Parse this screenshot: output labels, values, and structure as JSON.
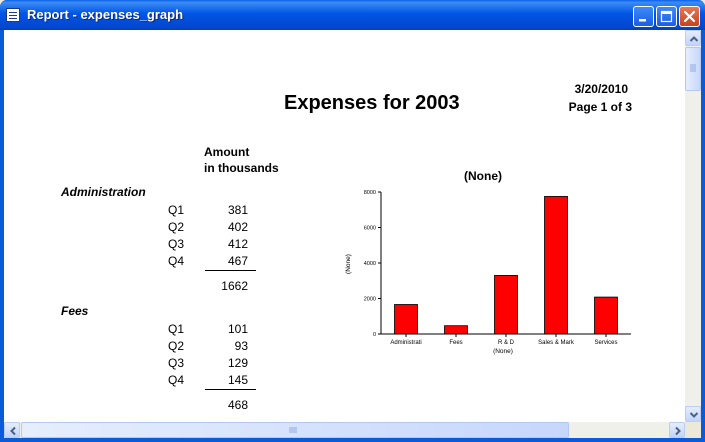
{
  "window": {
    "title": "Report - expenses_graph",
    "buttons": {
      "minimize": "minimize-icon",
      "maximize": "maximize-icon",
      "close": "close-icon"
    }
  },
  "report": {
    "date": "3/20/2010",
    "page": "Page 1 of 3",
    "heading": "Expenses for  2003",
    "column_header_line1": "Amount",
    "column_header_line2": "in thousands",
    "groups": [
      {
        "name": "Administration",
        "rows": [
          {
            "quarter": "Q1",
            "amount": "381"
          },
          {
            "quarter": "Q2",
            "amount": "402"
          },
          {
            "quarter": "Q3",
            "amount": "412"
          },
          {
            "quarter": "Q4",
            "amount": "467"
          }
        ],
        "total": "1662"
      },
      {
        "name": "Fees",
        "rows": [
          {
            "quarter": "Q1",
            "amount": "101"
          },
          {
            "quarter": "Q2",
            "amount": "93"
          },
          {
            "quarter": "Q3",
            "amount": "129"
          },
          {
            "quarter": "Q4",
            "amount": "145"
          }
        ],
        "total": "468"
      }
    ]
  },
  "chart_data": {
    "type": "bar",
    "title": "(None)",
    "xlabel": "(None)",
    "ylabel": "(None)",
    "categories": [
      "Administrati",
      "Fees",
      "R & D",
      "Sales & Mark",
      "Services"
    ],
    "values": [
      1662,
      468,
      3300,
      7750,
      2080
    ],
    "yticks": [
      "0",
      "2000",
      "4000",
      "6000",
      "8000"
    ],
    "ylim": [
      0,
      8000
    ],
    "bar_color": "#FF0000",
    "grid": false,
    "legend": "none"
  }
}
